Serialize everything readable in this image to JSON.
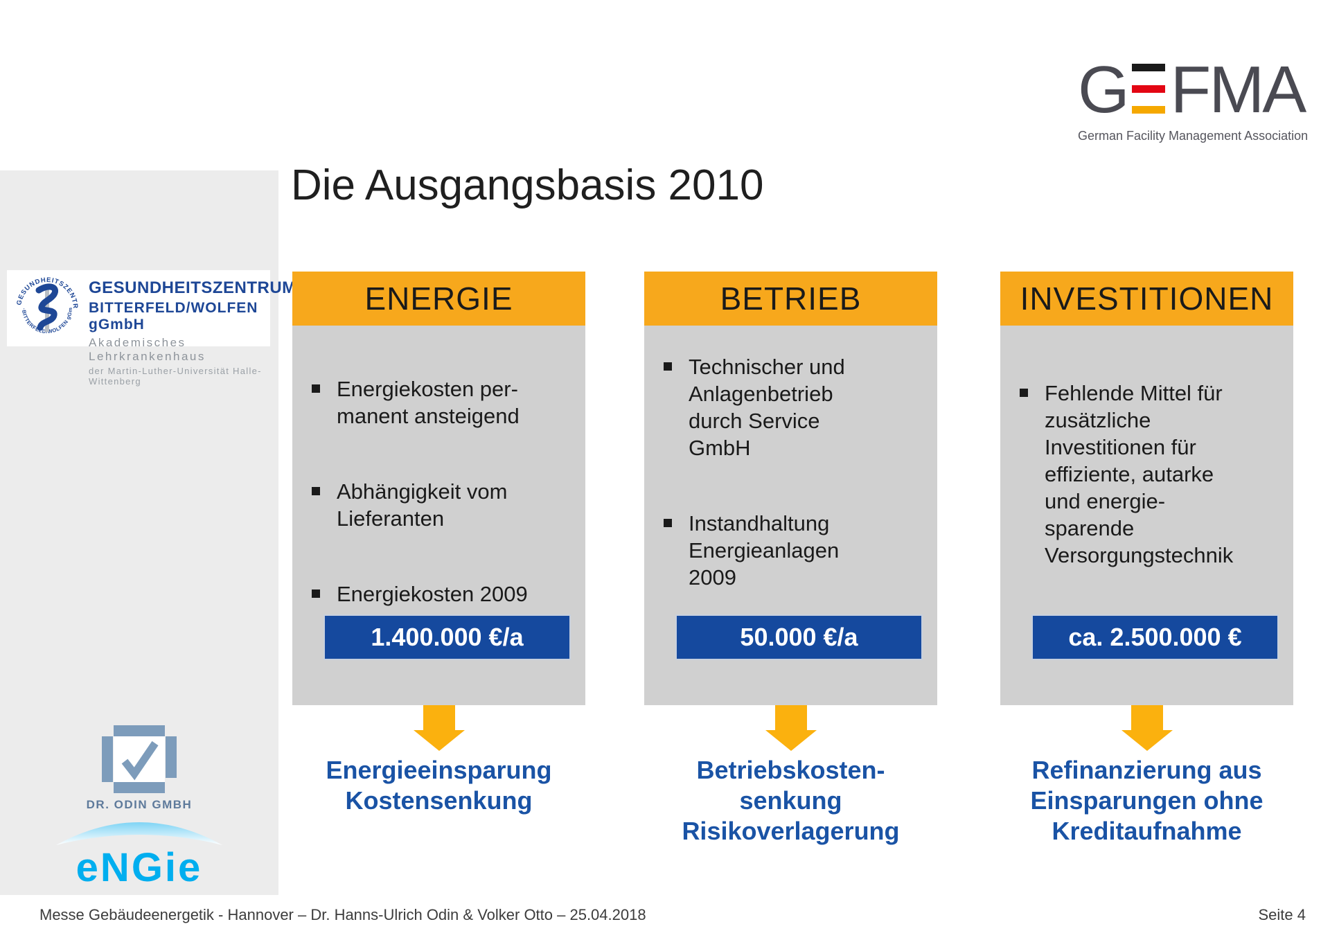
{
  "title": "Die Ausgangsbasis 2010",
  "gefma_logo": {
    "letter_g": "G",
    "letters_fma": "FMA",
    "flag_bar_colors": [
      "#1a1a1a",
      "#e30613",
      "#f5a800"
    ],
    "subtitle": "German Facility Management Association"
  },
  "sidebar": {
    "gesundheitszentrum": {
      "line1": "GESUNDHEITSZENTRUM",
      "line2": "BITTERFELD/WOLFEN gGmbH",
      "line3": "Akademisches Lehrkrankenhaus",
      "line4": "der Martin-Luther-Universität Halle-Wittenberg",
      "seal_arc_top": "GESUNDHEITSZENTRUM",
      "seal_arc_bottom": "· BITTERFELD/WOLFEN gGmbH ·",
      "brand_blue": "#1e4796"
    },
    "odin": {
      "label": "DR. ODIN GMBH",
      "icon_color": "#7d9cbb"
    },
    "engie": {
      "label": "eNGie",
      "brand_blue": "#00aeef"
    }
  },
  "columns": [
    {
      "header": "ENERGIE",
      "bullets": [
        "Energiekosten per-\nmanent ansteigend",
        "Abhängigkeit vom\nLieferanten",
        "Energiekosten 2009"
      ],
      "value": "1.400.000 €/a",
      "outcome": "Energieeinsparung\nKostensenkung"
    },
    {
      "header": "BETRIEB",
      "bullets": [
        "Technischer und\nAnlagenbetrieb\ndurch Service\nGmbH",
        "Instandhaltung\nEnergieanlagen\n2009"
      ],
      "value": "50.000 €/a",
      "outcome": "Betriebskosten-\nsenkung\nRisikoverlagerung"
    },
    {
      "header": "INVESTITIONEN",
      "bullets": [
        "Fehlende Mittel für\nzusätzliche\nInvestitionen für\neffiziente, autarke\nund energie-\nsparende\nVersorgungstechnik"
      ],
      "value": "ca. 2.500.000 €",
      "outcome": "Refinanzierung aus\nEinsparungen ohne\nKreditaufnahme"
    }
  ],
  "colors": {
    "header_orange": "#f7a81c",
    "arrow_orange": "#fbb10e",
    "value_box_blue": "#15499e",
    "outcome_blue": "#1a53a5",
    "column_gray": "#d0d0d0",
    "sidebar_gray": "#ececec"
  },
  "footer": {
    "left": "Messe Gebäudeenergetik - Hannover – Dr. Hanns-Ulrich Odin & Volker Otto – 25.04.2018",
    "right": "Seite 4"
  }
}
